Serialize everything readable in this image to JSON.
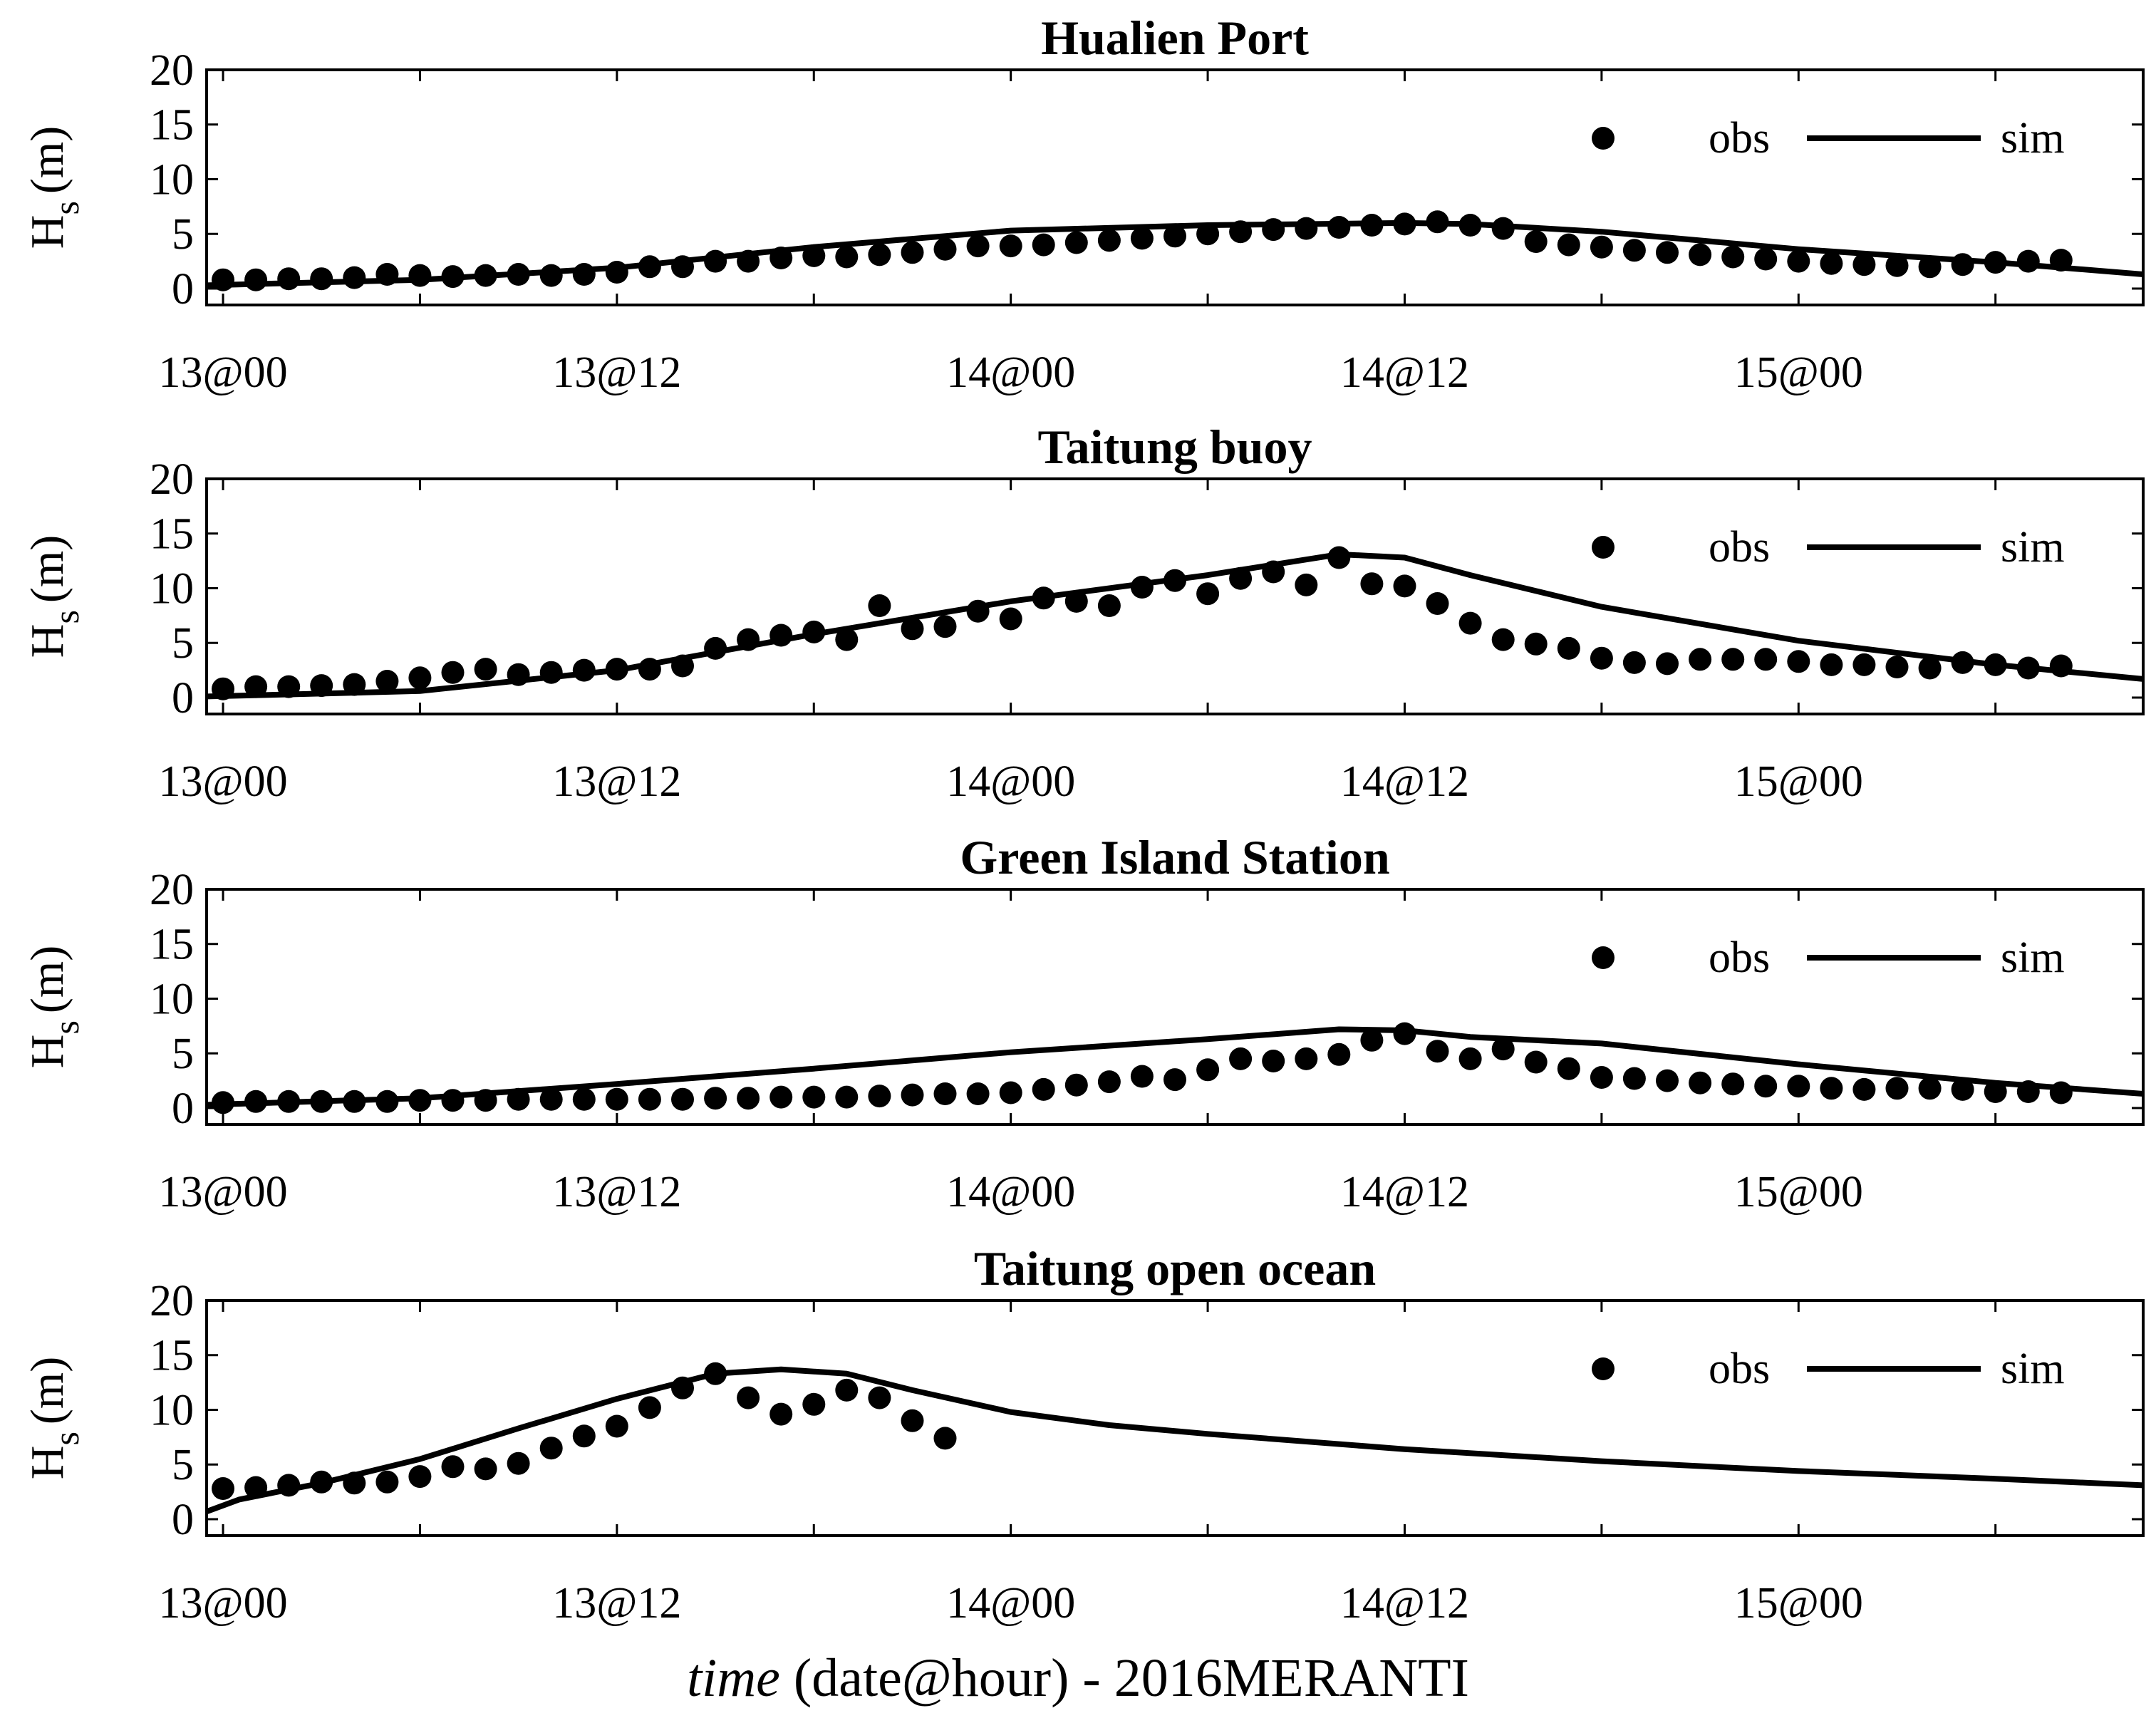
{
  "figure_xlabel": {
    "italic": "time",
    "rest": " (date@hour) - 2016MERANTI"
  },
  "chart_data": [
    {
      "type": "line",
      "title": "Hualien Port",
      "ylabel": "H",
      "ylabel_sub": "s",
      "ylabel_unit": "(m)",
      "ylim": [
        -1.5,
        20
      ],
      "yticks": [
        0,
        5,
        10,
        15,
        20
      ],
      "xlim": [
        -0.5,
        58.5
      ],
      "xticks": [
        0,
        12,
        24,
        36,
        48
      ],
      "xtick_labels": [
        "13@00",
        "13@12",
        "14@00",
        "14@12",
        "15@00"
      ],
      "legend": {
        "position": "top-right",
        "obs_label": "obs",
        "sim_label": "sim"
      },
      "series": [
        {
          "name": "obs",
          "style": "markers",
          "x": [
            0,
            1,
            2,
            3,
            4,
            5,
            6,
            7,
            8,
            9,
            10,
            11,
            12,
            13,
            14,
            15,
            16,
            17,
            18,
            19,
            20,
            21,
            22,
            23,
            24,
            25,
            26,
            27,
            28,
            29,
            30,
            31,
            32,
            33,
            34,
            35,
            36,
            37,
            38,
            39,
            40,
            41,
            42,
            43,
            44,
            45,
            46,
            47,
            48,
            49,
            50,
            51,
            52,
            53,
            54,
            55,
            56
          ],
          "values": [
            0.8,
            0.8,
            0.9,
            0.9,
            1.0,
            1.3,
            1.2,
            1.1,
            1.2,
            1.3,
            1.2,
            1.3,
            1.5,
            2.0,
            2.0,
            2.5,
            2.5,
            2.8,
            3.0,
            2.9,
            3.1,
            3.3,
            3.6,
            3.9,
            3.9,
            4.0,
            4.2,
            4.4,
            4.6,
            4.8,
            5.0,
            5.2,
            5.4,
            5.5,
            5.6,
            5.8,
            5.9,
            6.1,
            5.8,
            5.5,
            4.3,
            4.0,
            3.8,
            3.5,
            3.3,
            3.1,
            2.9,
            2.7,
            2.5,
            2.3,
            2.2,
            2.1,
            2.0,
            2.2,
            2.4,
            2.5,
            2.6
          ]
        },
        {
          "name": "sim",
          "style": "line",
          "x": [
            -0.5,
            6,
            12,
            18,
            24,
            30,
            36,
            38,
            42,
            48,
            54,
            58.5
          ],
          "values": [
            0.3,
            0.8,
            1.9,
            3.8,
            5.3,
            5.8,
            6.0,
            5.9,
            5.2,
            3.6,
            2.4,
            1.3
          ]
        }
      ]
    },
    {
      "type": "line",
      "title": "Taitung buoy",
      "ylabel": "H",
      "ylabel_sub": "s",
      "ylabel_unit": "(m)",
      "ylim": [
        -1.5,
        20
      ],
      "yticks": [
        0,
        5,
        10,
        15,
        20
      ],
      "xlim": [
        -0.5,
        58.5
      ],
      "xticks": [
        0,
        12,
        24,
        36,
        48
      ],
      "xtick_labels": [
        "13@00",
        "13@12",
        "14@00",
        "14@12",
        "15@00"
      ],
      "legend": {
        "position": "top-right",
        "obs_label": "obs",
        "sim_label": "sim"
      },
      "series": [
        {
          "name": "obs",
          "style": "markers",
          "x": [
            0,
            1,
            2,
            3,
            4,
            5,
            6,
            7,
            8,
            9,
            10,
            11,
            12,
            13,
            14,
            15,
            16,
            17,
            18,
            19,
            20,
            21,
            22,
            23,
            24,
            25,
            26,
            27,
            28,
            29,
            30,
            31,
            32,
            33,
            34,
            35,
            36,
            37,
            38,
            39,
            40,
            41,
            42,
            43,
            44,
            45,
            46,
            47,
            48,
            49,
            50,
            51,
            52,
            53,
            54,
            55,
            56
          ],
          "values": [
            0.8,
            1.0,
            1.0,
            1.1,
            1.2,
            1.5,
            1.8,
            2.3,
            2.6,
            2.1,
            2.3,
            2.5,
            2.6,
            2.6,
            2.9,
            4.5,
            5.3,
            5.7,
            6.0,
            5.3,
            8.4,
            6.3,
            6.5,
            7.9,
            7.2,
            9.1,
            8.8,
            8.4,
            10.1,
            10.7,
            9.5,
            10.9,
            11.5,
            10.3,
            12.8,
            10.4,
            10.2,
            8.6,
            6.8,
            5.3,
            4.9,
            4.5,
            3.6,
            3.2,
            3.1,
            3.5,
            3.5,
            3.5,
            3.3,
            3.0,
            3.0,
            2.8,
            2.7,
            3.2,
            3.0,
            2.7,
            2.9
          ]
        },
        {
          "name": "sim",
          "style": "line",
          "x": [
            -0.5,
            6,
            12,
            18,
            24,
            30,
            34,
            36,
            38,
            42,
            48,
            54,
            58.5
          ],
          "values": [
            0.1,
            0.6,
            2.5,
            5.8,
            8.8,
            11.2,
            13.1,
            12.8,
            11.2,
            8.3,
            5.2,
            3.0,
            1.7
          ]
        }
      ]
    },
    {
      "type": "line",
      "title": "Green Island Station",
      "ylabel": "H",
      "ylabel_sub": "s",
      "ylabel_unit": "(m)",
      "ylim": [
        -1.5,
        20
      ],
      "yticks": [
        0,
        5,
        10,
        15,
        20
      ],
      "xlim": [
        -0.5,
        58.5
      ],
      "xticks": [
        0,
        12,
        24,
        36,
        48
      ],
      "xtick_labels": [
        "13@00",
        "13@12",
        "14@00",
        "14@12",
        "15@00"
      ],
      "legend": {
        "position": "top-right",
        "obs_label": "obs",
        "sim_label": "sim"
      },
      "series": [
        {
          "name": "obs",
          "style": "markers",
          "x": [
            0,
            1,
            2,
            3,
            4,
            5,
            6,
            7,
            8,
            9,
            10,
            11,
            12,
            13,
            14,
            15,
            16,
            17,
            18,
            19,
            20,
            21,
            22,
            23,
            24,
            25,
            26,
            27,
            28,
            29,
            30,
            31,
            32,
            33,
            34,
            35,
            36,
            37,
            38,
            39,
            40,
            41,
            42,
            43,
            44,
            45,
            46,
            47,
            48,
            49,
            50,
            51,
            52,
            53,
            54,
            55,
            56
          ],
          "values": [
            0.5,
            0.6,
            0.6,
            0.6,
            0.6,
            0.6,
            0.7,
            0.7,
            0.7,
            0.8,
            0.8,
            0.8,
            0.8,
            0.8,
            0.8,
            0.9,
            0.9,
            1.0,
            1.0,
            1.0,
            1.1,
            1.2,
            1.3,
            1.3,
            1.4,
            1.7,
            2.1,
            2.4,
            2.9,
            2.6,
            3.5,
            4.5,
            4.3,
            4.5,
            4.9,
            6.2,
            6.8,
            5.2,
            4.5,
            5.4,
            4.2,
            3.6,
            2.8,
            2.7,
            2.5,
            2.3,
            2.2,
            2.0,
            2.0,
            1.8,
            1.7,
            1.8,
            1.8,
            1.7,
            1.5,
            1.5,
            1.4
          ]
        },
        {
          "name": "sim",
          "style": "line",
          "x": [
            -0.5,
            6,
            12,
            18,
            24,
            30,
            34,
            36,
            38,
            42,
            48,
            54,
            58.5
          ],
          "values": [
            0.3,
            0.9,
            2.2,
            3.6,
            5.1,
            6.3,
            7.2,
            7.1,
            6.5,
            5.9,
            4.0,
            2.3,
            1.3
          ]
        }
      ]
    },
    {
      "type": "line",
      "title": "Taitung open ocean",
      "ylabel": "H",
      "ylabel_sub": "s",
      "ylabel_unit": "(m)",
      "ylim": [
        -1.5,
        20
      ],
      "yticks": [
        0,
        5,
        10,
        15,
        20
      ],
      "xlim": [
        -0.5,
        58.5
      ],
      "xticks": [
        0,
        12,
        24,
        36,
        48
      ],
      "xtick_labels": [
        "13@00",
        "13@12",
        "14@00",
        "14@12",
        "15@00"
      ],
      "legend": {
        "position": "top-right",
        "obs_label": "obs",
        "sim_label": "sim"
      },
      "series": [
        {
          "name": "obs",
          "style": "markers",
          "x": [
            0,
            1,
            2,
            3,
            4,
            5,
            6,
            7,
            8,
            9,
            10,
            11,
            12,
            13,
            14,
            15,
            16,
            17,
            18,
            19,
            20,
            21,
            22
          ],
          "values": [
            2.8,
            2.9,
            3.1,
            3.4,
            3.3,
            3.4,
            3.9,
            4.8,
            4.6,
            5.1,
            6.5,
            7.6,
            8.5,
            10.2,
            12.0,
            13.3,
            11.1,
            9.6,
            10.5,
            11.8,
            11.1,
            9.0,
            7.4
          ]
        },
        {
          "name": "sim",
          "style": "line",
          "x": [
            -0.5,
            0.5,
            3,
            6,
            9,
            12,
            15,
            17,
            19,
            21,
            24,
            27,
            30,
            36,
            42,
            48,
            54,
            58.5
          ],
          "values": [
            0.7,
            1.8,
            3.3,
            5.5,
            8.3,
            11.0,
            13.3,
            13.7,
            13.3,
            11.8,
            9.8,
            8.6,
            7.8,
            6.4,
            5.3,
            4.4,
            3.7,
            3.1
          ]
        }
      ]
    }
  ]
}
